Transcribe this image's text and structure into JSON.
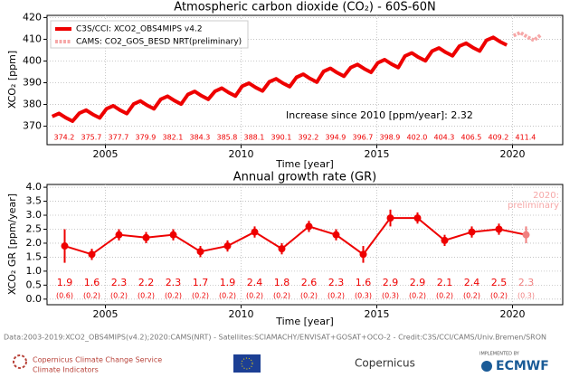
{
  "chart_data": [
    {
      "type": "line",
      "title": "Atmospheric carbon dioxide (CO₂) - 60S-60N",
      "xlabel": "Time [year]",
      "ylabel": "XCO₂ [ppm]",
      "xlim": [
        2002.85,
        2021.85
      ],
      "ylim": [
        361.5,
        421
      ],
      "xticks": [
        2005,
        2010,
        2015,
        2020
      ],
      "yticks": [
        370,
        380,
        390,
        400,
        410,
        420
      ],
      "grid": true,
      "legend": "upper left",
      "annotation": "Increase since 2010 [ppm/year]: 2.32",
      "annual_means": [
        "374.2",
        "375.7",
        "377.7",
        "379.9",
        "382.1",
        "384.3",
        "385.8",
        "388.1",
        "390.1",
        "392.2",
        "394.9",
        "396.7",
        "398.9",
        "402.0",
        "404.3",
        "406.5",
        "409.2",
        "411.4"
      ],
      "series": [
        {
          "name": "C3S/CCI: XCO2_OBS4MIPS v4.2",
          "color": "#ee0000",
          "x": [
            2003.04,
            2003.29,
            2003.54,
            2003.79,
            2004.04,
            2004.29,
            2004.54,
            2004.79,
            2005.04,
            2005.29,
            2005.54,
            2005.79,
            2006.04,
            2006.29,
            2006.54,
            2006.79,
            2007.04,
            2007.29,
            2007.54,
            2007.79,
            2008.04,
            2008.29,
            2008.54,
            2008.79,
            2009.04,
            2009.29,
            2009.54,
            2009.79,
            2010.04,
            2010.29,
            2010.54,
            2010.79,
            2011.04,
            2011.29,
            2011.54,
            2011.79,
            2012.04,
            2012.29,
            2012.54,
            2012.79,
            2013.04,
            2013.29,
            2013.54,
            2013.79,
            2014.04,
            2014.29,
            2014.54,
            2014.79,
            2015.04,
            2015.29,
            2015.54,
            2015.79,
            2016.04,
            2016.29,
            2016.54,
            2016.79,
            2017.04,
            2017.29,
            2017.54,
            2017.79,
            2018.04,
            2018.29,
            2018.54,
            2018.79,
            2019.04,
            2019.29,
            2019.54,
            2019.79
          ],
          "values": [
            374.5,
            375.9,
            373.9,
            372.3,
            376.0,
            377.4,
            375.4,
            373.8,
            378.0,
            379.4,
            377.4,
            375.8,
            380.2,
            381.6,
            379.6,
            378.0,
            382.4,
            383.8,
            381.8,
            380.2,
            384.6,
            386.0,
            384.0,
            382.4,
            386.1,
            387.5,
            385.5,
            383.9,
            388.4,
            389.8,
            387.8,
            386.2,
            390.4,
            391.8,
            389.8,
            388.2,
            392.5,
            393.9,
            391.9,
            390.3,
            395.2,
            396.6,
            394.6,
            393.0,
            397.0,
            398.4,
            396.4,
            394.8,
            399.2,
            400.6,
            398.6,
            397.0,
            402.3,
            403.7,
            401.7,
            400.1,
            404.6,
            406.0,
            404.0,
            402.4,
            406.8,
            408.2,
            406.2,
            404.6,
            409.5,
            410.9,
            408.9,
            407.3
          ]
        },
        {
          "name": "CAMS: CO2_GOS_BESD NRT(preliminary)",
          "color": "#f6a8a8",
          "x": [
            2020.04,
            2020.29,
            2020.54,
            2020.79,
            2021.04
          ],
          "values": [
            411.7,
            413.1,
            411.1,
            409.5,
            412.0
          ]
        }
      ]
    },
    {
      "type": "errorbar",
      "title": "Annual growth rate (GR)",
      "xlabel": "Time [year]",
      "ylabel": "XCO₂ GR [ppm/year]",
      "xlim": [
        2002.85,
        2021.85
      ],
      "ylim": [
        -0.2,
        4.1
      ],
      "xticks": [
        2005,
        2010,
        2015,
        2020
      ],
      "yticks": [
        {
          "value": 0,
          "label": "0.0"
        },
        {
          "value": 0.5,
          "label": "0.5"
        },
        {
          "value": 1,
          "label": "1.0"
        },
        {
          "value": 1.5,
          "label": "1.5"
        },
        {
          "value": 2,
          "label": "2.0"
        },
        {
          "value": 2.5,
          "label": "2.5"
        },
        {
          "value": 3,
          "label": "3.0"
        },
        {
          "value": 3.5,
          "label": "3.5"
        },
        {
          "value": 4,
          "label": "4.0"
        }
      ],
      "grid": true,
      "annotation": [
        "2020:",
        "preliminary"
      ],
      "series": [
        {
          "color": "#ee0000",
          "x": [
            2003.5,
            2004.5,
            2005.5,
            2006.5,
            2007.5,
            2008.5,
            2009.5,
            2010.5,
            2011.5,
            2012.5,
            2013.5,
            2014.5,
            2015.5,
            2016.5,
            2017.5,
            2018.5,
            2019.5
          ],
          "values": [
            1.9,
            1.6,
            2.3,
            2.2,
            2.3,
            1.7,
            1.9,
            2.4,
            1.8,
            2.6,
            2.3,
            1.6,
            2.9,
            2.9,
            2.1,
            2.4,
            2.5
          ],
          "errors": [
            0.6,
            0.2,
            0.2,
            0.2,
            0.2,
            0.2,
            0.2,
            0.2,
            0.2,
            0.2,
            0.2,
            0.3,
            0.3,
            0.2,
            0.2,
            0.2,
            0.2
          ],
          "error_labels": [
            "(0.6)",
            "(0.2)",
            "(0.2)",
            "(0.2)",
            "(0.2)",
            "(0.2)",
            "(0.2)",
            "(0.2)",
            "(0.2)",
            "(0.2)",
            "(0.2)",
            "(0.3)",
            "(0.3)",
            "(0.2)",
            "(0.2)",
            "(0.2)",
            "(0.2)"
          ]
        },
        {
          "color": "#f08080",
          "x": [
            2020.5
          ],
          "values": [
            2.3
          ],
          "errors": [
            0.3
          ],
          "error_labels": [
            "(0.3)"
          ]
        }
      ]
    }
  ],
  "footer": {
    "credit": "Data:2003-2019:XCO2_OBS4MIPS(v4.2);2020:CAMS(NRT) - Satellites:SCIAMACHY/ENVISAT+GOSAT+OCO-2 - Credit:C3S/CCI/CAMS/Univ.Bremen/SRON",
    "c3s": [
      "Copernicus Climate Change Service",
      "Climate Indicators"
    ],
    "copernicus": "Copernicus",
    "implemented": "IMPLEMENTED BY",
    "ecmwf": "ECMWF"
  }
}
